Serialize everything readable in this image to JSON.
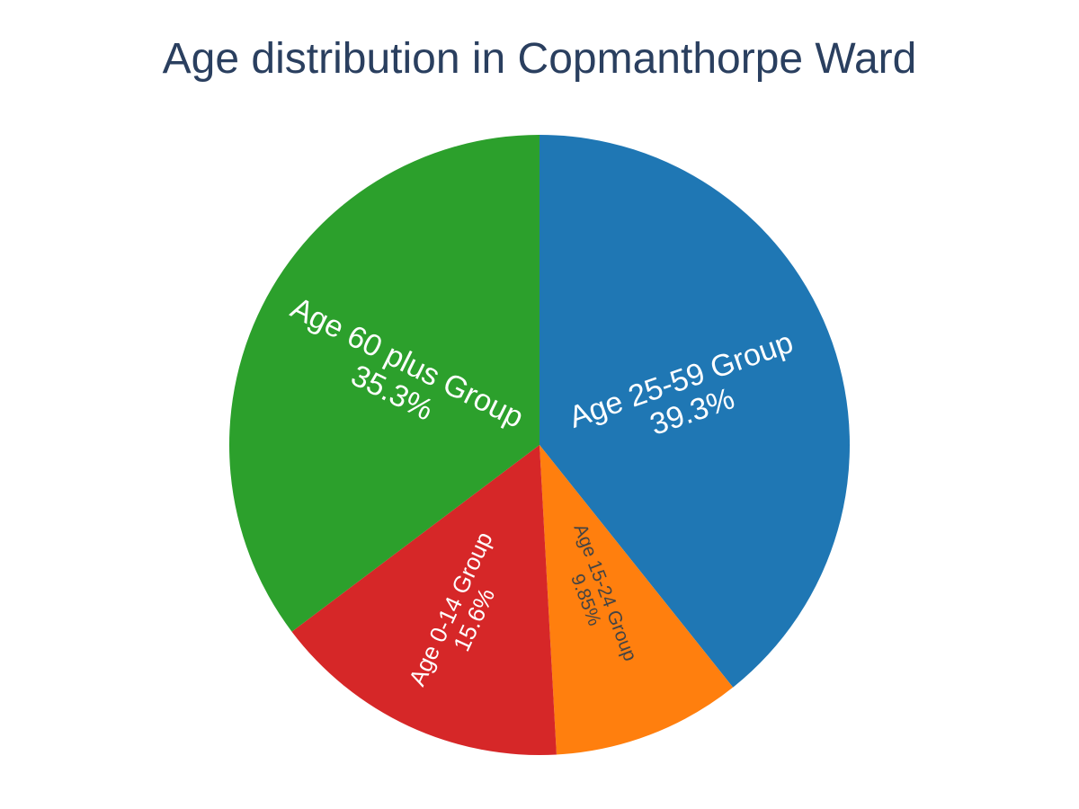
{
  "chart_data": {
    "type": "pie",
    "title": "Age distribution in Copmanthorpe Ward",
    "direction": "clockwise",
    "start": "top",
    "slices": [
      {
        "name": "Age 25-59 Group",
        "percent_label": "39.3%",
        "value": 39.3,
        "color": "#1f77b4",
        "text_color": "#ffffff"
      },
      {
        "name": "Age 15-24 Group",
        "percent_label": "9.85%",
        "value": 9.85,
        "color": "#ff7f0e",
        "text_color": "#444444"
      },
      {
        "name": "Age 0-14 Group",
        "percent_label": "15.6%",
        "value": 15.6,
        "color": "#d62728",
        "text_color": "#ffffff"
      },
      {
        "name": "Age 60 plus Group",
        "percent_label": "35.3%",
        "value": 35.3,
        "color": "#2ca02c",
        "text_color": "#ffffff"
      }
    ]
  }
}
